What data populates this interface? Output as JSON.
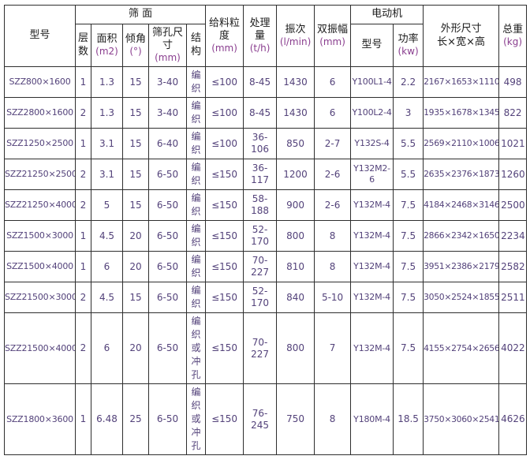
{
  "table": {
    "title_semantic": "vibrating-screen-specification-table",
    "header": {
      "model": {
        "title": "型号"
      },
      "screen": {
        "title": "筛 面"
      },
      "layers": {
        "title": "层数"
      },
      "area": {
        "title": "面积",
        "unit": "(m2)"
      },
      "incline": {
        "title": "倾角",
        "unit": "(°)"
      },
      "aperture": {
        "title": "筛孔尺寸",
        "unit": "(mm)"
      },
      "structure": {
        "title": "结构"
      },
      "feed": {
        "title": "给料粒度",
        "unit": "(mm)"
      },
      "capacity": {
        "title": "处理量",
        "unit": "(t/h)"
      },
      "freq": {
        "title": "振次",
        "unit": "(l/min)"
      },
      "amplitude": {
        "title": "双振幅",
        "unit": "(mm)"
      },
      "motor": {
        "title": "电动机"
      },
      "motor_model": {
        "title": "型号"
      },
      "power": {
        "title": "功率",
        "unit": "(kw)"
      },
      "dims": {
        "title": "外形尺寸\n长×宽×高"
      },
      "weight": {
        "title": "总重",
        "unit": "(kg)"
      }
    },
    "column_keys": [
      "model",
      "layers",
      "area",
      "incline",
      "aperture",
      "structure",
      "feed",
      "capacity",
      "freq",
      "amplitude",
      "motor",
      "power",
      "dims",
      "weight"
    ],
    "rows": [
      {
        "model": "SZZ800×1600",
        "layers": "1",
        "area": "1.3",
        "incline": "15",
        "aperture": "3-40",
        "structure": "编织",
        "feed": "≤100",
        "capacity": "8-45",
        "freq": "1430",
        "amplitude": "6",
        "motor": "Y100L1-4",
        "power": "2.2",
        "dims": "2167×1653×1110",
        "weight": "498"
      },
      {
        "model": "SZZ2800×1600",
        "layers": "2",
        "area": "1.3",
        "incline": "15",
        "aperture": "3-40",
        "structure": "编织",
        "feed": "≤100",
        "capacity": "8-45",
        "freq": "1430",
        "amplitude": "6",
        "motor": "Y100L2-4",
        "power": "3",
        "dims": "1935×1678×1345",
        "weight": "822"
      },
      {
        "model": "SZZ1250×2500",
        "layers": "1",
        "area": "3.1",
        "incline": "15",
        "aperture": "6-40",
        "structure": "编织",
        "feed": "≤100",
        "capacity": "36-106",
        "freq": "850",
        "amplitude": "2-7",
        "motor": "Y132S-4",
        "power": "5.5",
        "dims": "2569×2110×1006",
        "weight": "1021"
      },
      {
        "model": "SZZ21250×2500",
        "layers": "2",
        "area": "3.1",
        "incline": "15",
        "aperture": "6-50",
        "structure": "编织",
        "feed": "≤150",
        "capacity": "36-117",
        "freq": "1200",
        "amplitude": "2-6",
        "motor": "Y132M2-6",
        "power": "5.5",
        "dims": "2635×2376×1873",
        "weight": "1260"
      },
      {
        "model": "SZZ21250×4000",
        "layers": "2",
        "area": "5",
        "incline": "15",
        "aperture": "6-50",
        "structure": "编织",
        "feed": "≤150",
        "capacity": "58-188",
        "freq": "900",
        "amplitude": "2-6",
        "motor": "Y132M-4",
        "power": "7.5",
        "dims": "4184×2468×3146",
        "weight": "2500"
      },
      {
        "model": "SZZ1500×3000",
        "layers": "1",
        "area": "4.5",
        "incline": "20",
        "aperture": "6-50",
        "structure": "编织",
        "feed": "≤150",
        "capacity": "52-170",
        "freq": "800",
        "amplitude": "8",
        "motor": "Y132M-4",
        "power": "7.5",
        "dims": "2866×2342×1650",
        "weight": "2234"
      },
      {
        "model": "SZZ1500×4000",
        "layers": "1",
        "area": "6",
        "incline": "20",
        "aperture": "6-50",
        "structure": "编织",
        "feed": "≤150",
        "capacity": "70-227",
        "freq": "810",
        "amplitude": "8",
        "motor": "Y132M-4",
        "power": "7.5",
        "dims": "3951×2386×2179",
        "weight": "2582"
      },
      {
        "model": "SZZ21500×3000",
        "layers": "2",
        "area": "4.5",
        "incline": "15",
        "aperture": "6-50",
        "structure": "编织",
        "feed": "≤150",
        "capacity": "52-170",
        "freq": "840",
        "amplitude": "5-10",
        "motor": "Y132M-4",
        "power": "7.5",
        "dims": "3050×2524×1855",
        "weight": "2511"
      },
      {
        "model": "SZZ21500×4000",
        "layers": "2",
        "area": "6",
        "incline": "20",
        "aperture": "6-50",
        "structure": "编织或冲孔",
        "feed": "≤150",
        "capacity": "70-227",
        "freq": "800",
        "amplitude": "7",
        "motor": "Y132M-4",
        "power": "7.5",
        "dims": "4155×2754×2656",
        "weight": "4022"
      },
      {
        "model": "SZZ1800×3600",
        "layers": "1",
        "area": "6.48",
        "incline": "25",
        "aperture": "6-50",
        "structure": "编织或冲孔",
        "feed": "≤150",
        "capacity": "76-245",
        "freq": "750",
        "amplitude": "8",
        "motor": "Y180M-4",
        "power": "18.5",
        "dims": "3750×3060×2541",
        "weight": "4626"
      }
    ],
    "colors": {
      "border": "#2e2e2e",
      "header_text": "#1b1b1b",
      "unit_text": "#8a3e8f",
      "data_text": "#53427a",
      "background": "#ffffff"
    }
  }
}
